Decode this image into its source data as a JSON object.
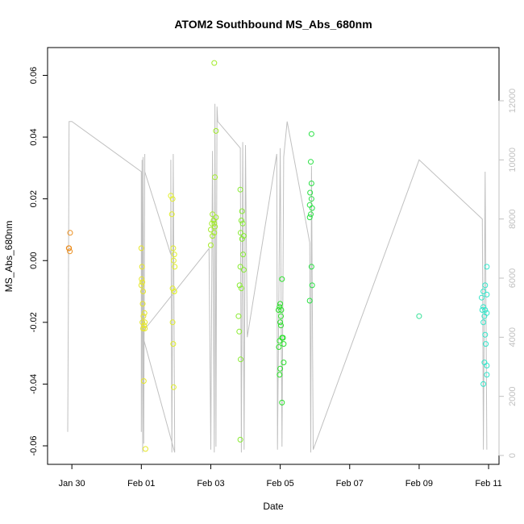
{
  "chart_data": {
    "type": "scatter",
    "title": "ATOM2 Southbound MS_Abs_680nm",
    "xlabel": "Date",
    "ylabel": "MS_Abs_680nm",
    "xlim": [
      -2.7,
      10.3
    ],
    "ylim": [
      -0.066,
      0.069
    ],
    "y2lim": [
      -300,
      13800
    ],
    "grid": false,
    "x_ticks": [
      {
        "v": -2,
        "label": "Jan 30"
      },
      {
        "v": 0,
        "label": "Feb 01"
      },
      {
        "v": 2,
        "label": "Feb 03"
      },
      {
        "v": 4,
        "label": "Feb 05"
      },
      {
        "v": 6,
        "label": "Feb 07"
      },
      {
        "v": 8,
        "label": "Feb 09"
      },
      {
        "v": 10,
        "label": "Feb 11"
      }
    ],
    "y_ticks": [
      {
        "v": -0.06,
        "label": "-0.06"
      },
      {
        "v": -0.04,
        "label": "-0.04"
      },
      {
        "v": -0.02,
        "label": "-0.02"
      },
      {
        "v": 0,
        "label": "0.00"
      },
      {
        "v": 0.02,
        "label": "0.02"
      },
      {
        "v": 0.04,
        "label": "0.04"
      },
      {
        "v": 0.06,
        "label": "0.06"
      }
    ],
    "y2_ticks": [
      {
        "v": 0,
        "label": "0"
      },
      {
        "v": 2000,
        "label": "2000"
      },
      {
        "v": 4000,
        "label": "4000"
      },
      {
        "v": 6000,
        "label": "6000"
      },
      {
        "v": 8000,
        "label": "8000"
      },
      {
        "v": 10000,
        "label": "10000"
      },
      {
        "v": 12000,
        "label": "12000"
      }
    ],
    "series": [
      {
        "name": "MS_Abs_680nm",
        "color_scale": "time (orange → green → cyan)",
        "points": [
          [
            -2.05,
            0.009
          ],
          [
            -2.08,
            0.004
          ],
          [
            -2.06,
            0.003
          ],
          [
            -2.09,
            0.004
          ],
          [
            0.0,
            0.004
          ],
          [
            0.02,
            -0.002
          ],
          [
            0.01,
            -0.006
          ],
          [
            0.03,
            -0.007
          ],
          [
            0.0,
            -0.008
          ],
          [
            0.05,
            -0.01
          ],
          [
            0.04,
            -0.014
          ],
          [
            0.06,
            -0.018
          ],
          [
            0.03,
            -0.02
          ],
          [
            0.08,
            -0.021
          ],
          [
            0.05,
            -0.022
          ],
          [
            0.1,
            -0.022
          ],
          [
            0.1,
            -0.02
          ],
          [
            0.07,
            -0.039
          ],
          [
            0.12,
            -0.061
          ],
          [
            0.09,
            -0.017
          ],
          [
            0.85,
            0.021
          ],
          [
            0.9,
            0.02
          ],
          [
            0.88,
            0.015
          ],
          [
            0.92,
            0.004
          ],
          [
            0.95,
            0.002
          ],
          [
            0.93,
            0.0
          ],
          [
            0.96,
            -0.002
          ],
          [
            0.9,
            -0.009
          ],
          [
            0.95,
            -0.01
          ],
          [
            0.9,
            -0.02
          ],
          [
            0.92,
            -0.027
          ],
          [
            0.93,
            -0.041
          ],
          [
            0.95,
            -0.01
          ],
          [
            2.1,
            0.064
          ],
          [
            2.15,
            0.042
          ],
          [
            2.12,
            0.027
          ],
          [
            2.05,
            0.015
          ],
          [
            2.08,
            0.013
          ],
          [
            2.15,
            0.014
          ],
          [
            2.1,
            0.012
          ],
          [
            2.03,
            0.012
          ],
          [
            2.0,
            0.01
          ],
          [
            2.12,
            0.011
          ],
          [
            2.1,
            0.009
          ],
          [
            2.05,
            0.008
          ],
          [
            2.0,
            0.005
          ],
          [
            2.85,
            0.023
          ],
          [
            2.9,
            0.016
          ],
          [
            2.88,
            0.013
          ],
          [
            2.92,
            0.012
          ],
          [
            2.86,
            0.009
          ],
          [
            2.95,
            0.008
          ],
          [
            2.9,
            0.007
          ],
          [
            2.93,
            0.002
          ],
          [
            2.95,
            -0.003
          ],
          [
            2.85,
            -0.002
          ],
          [
            2.83,
            -0.008
          ],
          [
            2.88,
            -0.009
          ],
          [
            2.8,
            -0.018
          ],
          [
            2.82,
            -0.023
          ],
          [
            2.86,
            -0.032
          ],
          [
            2.85,
            -0.058
          ],
          [
            4.0,
            -0.014
          ],
          [
            4.05,
            -0.006
          ],
          [
            3.98,
            -0.015
          ],
          [
            4.03,
            -0.016
          ],
          [
            3.95,
            -0.016
          ],
          [
            4.02,
            -0.018
          ],
          [
            4.0,
            -0.02
          ],
          [
            4.02,
            -0.021
          ],
          [
            4.08,
            -0.025
          ],
          [
            4.05,
            -0.025
          ],
          [
            3.98,
            -0.026
          ],
          [
            3.96,
            -0.028
          ],
          [
            4.1,
            -0.027
          ],
          [
            4.1,
            -0.033
          ],
          [
            4.0,
            -0.035
          ],
          [
            3.98,
            -0.037
          ],
          [
            4.05,
            -0.046
          ],
          [
            4.9,
            0.041
          ],
          [
            4.88,
            0.032
          ],
          [
            4.9,
            0.025
          ],
          [
            4.86,
            0.022
          ],
          [
            4.9,
            0.02
          ],
          [
            4.85,
            0.018
          ],
          [
            4.92,
            0.017
          ],
          [
            4.88,
            0.015
          ],
          [
            4.85,
            0.014
          ],
          [
            4.9,
            -0.002
          ],
          [
            4.92,
            -0.008
          ],
          [
            4.85,
            -0.013
          ],
          [
            8.0,
            -0.018
          ],
          [
            9.95,
            -0.002
          ],
          [
            9.9,
            -0.008
          ],
          [
            9.85,
            -0.01
          ],
          [
            9.8,
            -0.012
          ],
          [
            9.95,
            -0.011
          ],
          [
            9.85,
            -0.015
          ],
          [
            9.9,
            -0.016
          ],
          [
            9.82,
            -0.016
          ],
          [
            9.95,
            -0.017
          ],
          [
            9.88,
            -0.018
          ],
          [
            9.85,
            -0.02
          ],
          [
            9.9,
            -0.024
          ],
          [
            9.92,
            -0.027
          ],
          [
            9.88,
            -0.033
          ],
          [
            9.95,
            -0.034
          ],
          [
            9.95,
            -0.037
          ],
          [
            9.85,
            -0.04
          ]
        ]
      },
      {
        "name": "secondary (gray line, right axis)",
        "color": "#c0c0c0",
        "path": [
          [
            -2.12,
            800
          ],
          [
            -2.1,
            5000
          ],
          [
            -2.08,
            11300
          ],
          [
            -2.0,
            11300
          ],
          [
            0.0,
            9600
          ],
          [
            0.0,
            800
          ],
          [
            0.02,
            10000
          ],
          [
            0.04,
            100
          ],
          [
            0.05,
            10100
          ],
          [
            0.07,
            400
          ],
          [
            0.1,
            10200
          ],
          [
            0.1,
            9600
          ],
          [
            0.85,
            6800
          ],
          [
            0.85,
            10000
          ],
          [
            0.88,
            100
          ],
          [
            0.92,
            10200
          ],
          [
            0.96,
            100
          ],
          [
            0.05,
            4000
          ],
          [
            0.05,
            4200
          ],
          [
            1.95,
            7000
          ],
          [
            2.0,
            200
          ],
          [
            2.05,
            10300
          ],
          [
            2.1,
            100
          ],
          [
            2.12,
            11900
          ],
          [
            2.15,
            300
          ],
          [
            2.18,
            11800
          ],
          [
            2.2,
            11300
          ],
          [
            2.85,
            10400
          ],
          [
            2.88,
            100
          ],
          [
            2.92,
            10600
          ],
          [
            2.96,
            200
          ],
          [
            3.0,
            10500
          ],
          [
            3.05,
            4000
          ],
          [
            3.9,
            10200
          ],
          [
            3.92,
            200
          ],
          [
            4.0,
            10400
          ],
          [
            4.05,
            300
          ],
          [
            4.1,
            10100
          ],
          [
            4.2,
            11300
          ],
          [
            4.85,
            7200
          ],
          [
            4.88,
            100
          ],
          [
            4.9,
            9800
          ],
          [
            4.95,
            200
          ],
          [
            8.0,
            10000
          ],
          [
            9.82,
            8000
          ],
          [
            9.85,
            200
          ],
          [
            9.9,
            9600
          ],
          [
            9.95,
            200
          ]
        ]
      }
    ]
  }
}
